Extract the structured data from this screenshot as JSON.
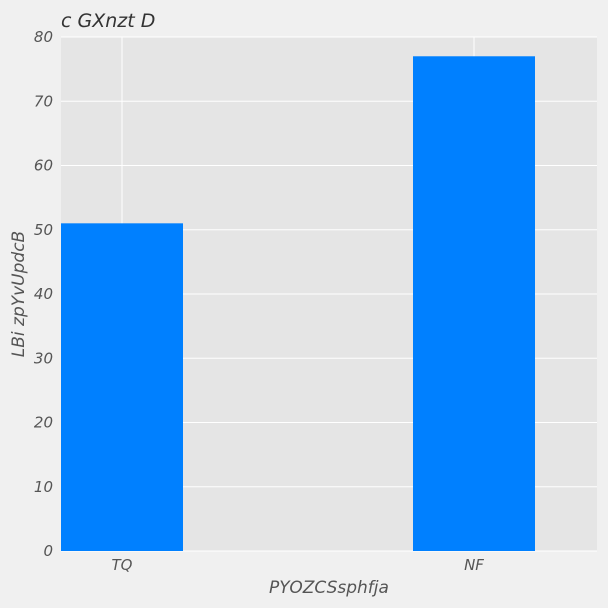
{
  "chart_data": {
    "type": "bar",
    "title": "c GXnzt D",
    "xlabel": "PYOZCSsphfja",
    "ylabel": "LBi zpYvUpdcB",
    "categories": [
      "TQ",
      "NF"
    ],
    "values": [
      51,
      77
    ],
    "ylim": [
      0,
      80
    ],
    "yticks": [
      0,
      10,
      20,
      30,
      40,
      50,
      60,
      70,
      80
    ],
    "grid": true,
    "bar_color": "#0080ff",
    "plot_background": "#e5e5e5",
    "page_background": "#f0f0f0",
    "grid_color": "#ffffff"
  }
}
